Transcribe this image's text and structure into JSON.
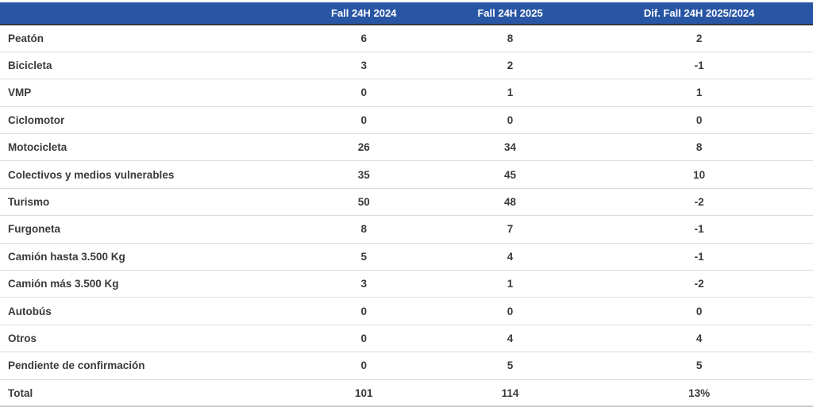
{
  "table": {
    "headers": [
      "",
      "Fall 24H 2024",
      "Fall 24H 2025",
      "Dif. Fall 24H 2025/2024"
    ],
    "rows": [
      {
        "label": "Peatón",
        "fall_2024": "6",
        "fall_2025": "8",
        "dif": "2",
        "is_total": false
      },
      {
        "label": "Bicicleta",
        "fall_2024": "3",
        "fall_2025": "2",
        "dif": "-1",
        "is_total": false
      },
      {
        "label": "VMP",
        "fall_2024": "0",
        "fall_2025": "1",
        "dif": "1",
        "is_total": false
      },
      {
        "label": "Ciclomotor",
        "fall_2024": "0",
        "fall_2025": "0",
        "dif": "0",
        "is_total": false
      },
      {
        "label": "Motocicleta",
        "fall_2024": "26",
        "fall_2025": "34",
        "dif": "8",
        "is_total": false
      },
      {
        "label": "Colectivos y medios vulnerables",
        "fall_2024": "35",
        "fall_2025": "45",
        "dif": "10",
        "is_total": false
      },
      {
        "label": "Turismo",
        "fall_2024": "50",
        "fall_2025": "48",
        "dif": "-2",
        "is_total": false
      },
      {
        "label": "Furgoneta",
        "fall_2024": "8",
        "fall_2025": "7",
        "dif": "-1",
        "is_total": false
      },
      {
        "label": "Camión hasta 3.500 Kg",
        "fall_2024": "5",
        "fall_2025": "4",
        "dif": "-1",
        "is_total": false
      },
      {
        "label": "Camión más 3.500 Kg",
        "fall_2024": "3",
        "fall_2025": "1",
        "dif": "-2",
        "is_total": false
      },
      {
        "label": "Autobús",
        "fall_2024": "0",
        "fall_2025": "0",
        "dif": "0",
        "is_total": false
      },
      {
        "label": "Otros",
        "fall_2024": "0",
        "fall_2025": "4",
        "dif": "4",
        "is_total": false
      },
      {
        "label": "Pendiente de confirmación",
        "fall_2024": "0",
        "fall_2025": "5",
        "dif": "5",
        "is_total": false
      },
      {
        "label": "Total",
        "fall_2024": "101",
        "fall_2025": "114",
        "dif": "13%",
        "is_total": true
      }
    ]
  },
  "colors": {
    "header_bg": "#2956a4",
    "header_text": "#ffffff",
    "body_text": "#3a3a3a",
    "row_divider": "#dcdcdc",
    "header_divider": "#33333b",
    "total_divider": "#c9c9c9"
  },
  "chart_data": {
    "type": "table",
    "title": "",
    "columns": [
      "",
      "Fall 24H 2024",
      "Fall 24H 2025",
      "Dif. Fall 24H 2025/2024"
    ],
    "rows": [
      [
        "Peatón",
        6,
        8,
        2
      ],
      [
        "Bicicleta",
        3,
        2,
        -1
      ],
      [
        "VMP",
        0,
        1,
        1
      ],
      [
        "Ciclomotor",
        0,
        0,
        0
      ],
      [
        "Motocicleta",
        26,
        34,
        8
      ],
      [
        "Colectivos y medios vulnerables",
        35,
        45,
        10
      ],
      [
        "Turismo",
        50,
        48,
        -2
      ],
      [
        "Furgoneta",
        8,
        7,
        -1
      ],
      [
        "Camión hasta 3.500 Kg",
        5,
        4,
        -1
      ],
      [
        "Camión más 3.500 Kg",
        3,
        1,
        -2
      ],
      [
        "Autobús",
        0,
        0,
        0
      ],
      [
        "Otros",
        0,
        4,
        4
      ],
      [
        "Pendiente de confirmación",
        0,
        5,
        5
      ],
      [
        "Total",
        101,
        114,
        "13%"
      ]
    ]
  }
}
